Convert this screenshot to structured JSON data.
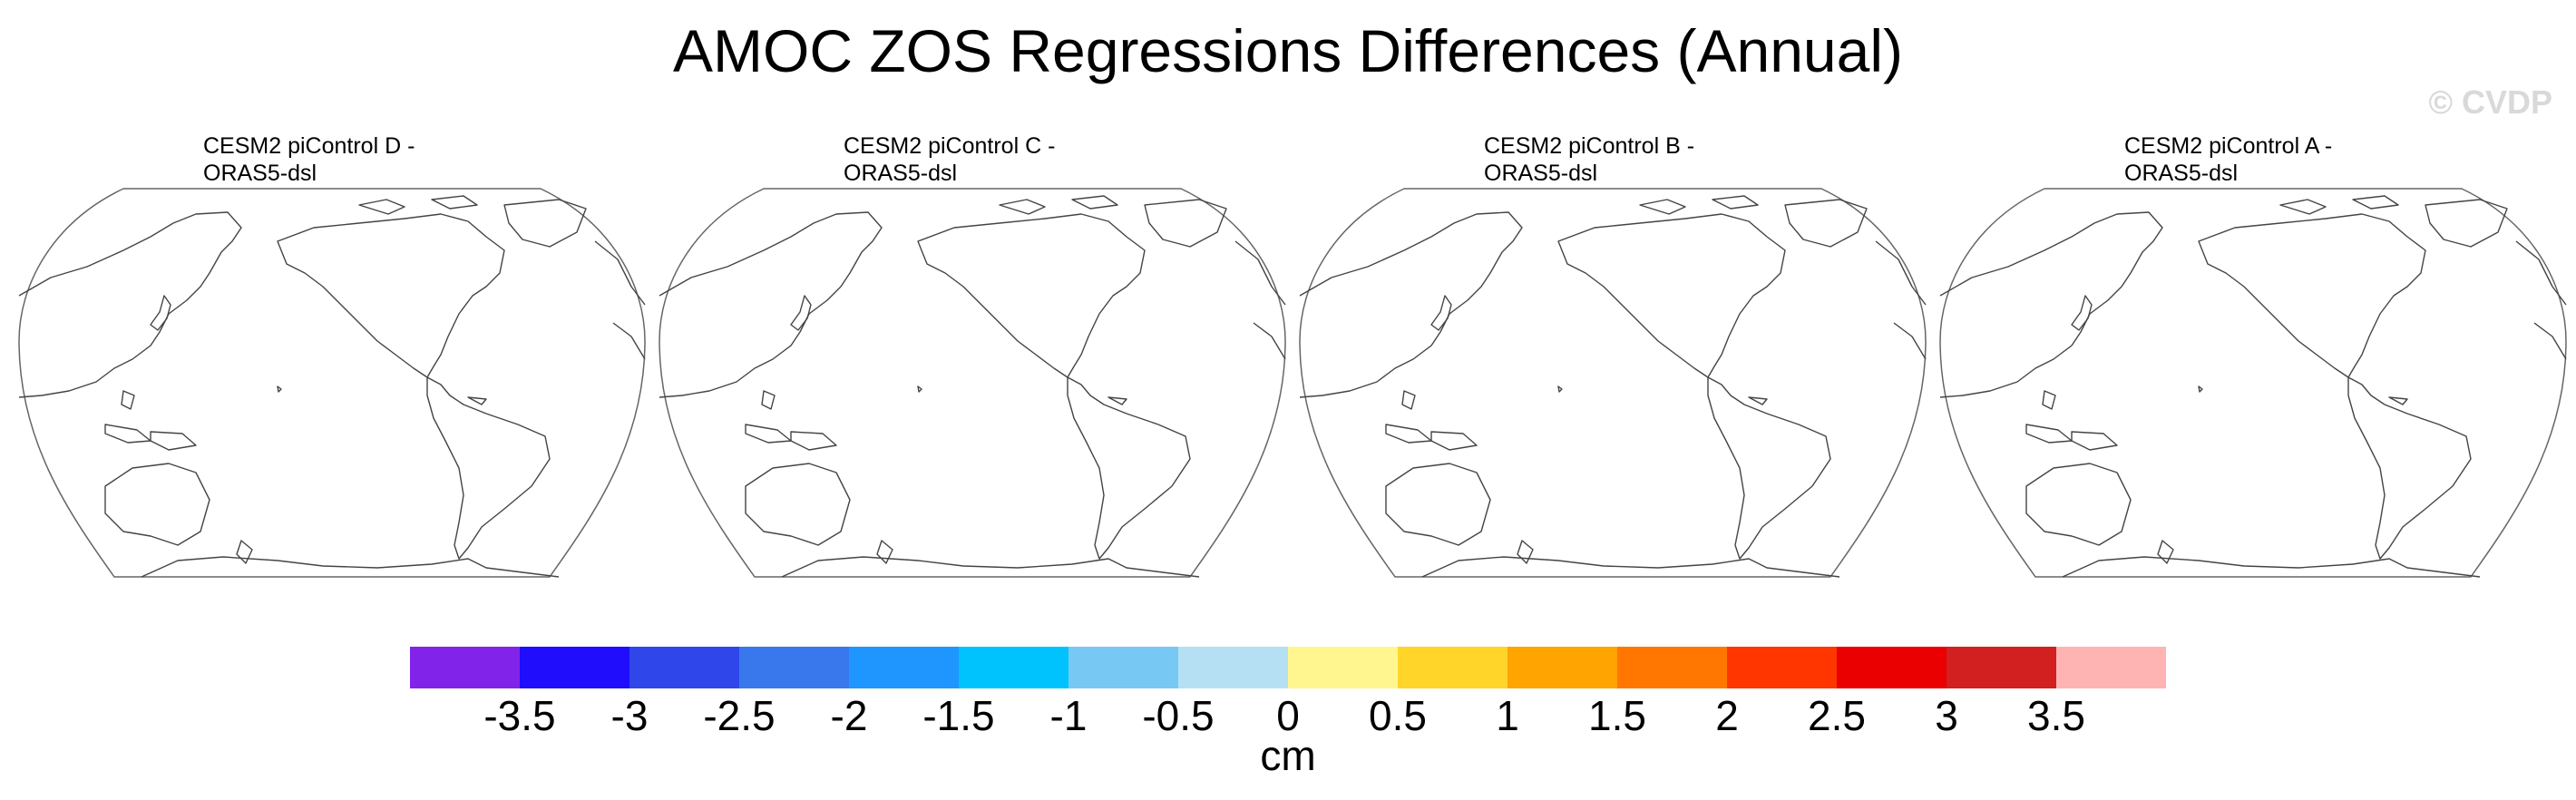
{
  "title": "AMOC ZOS Regressions Differences (Annual)",
  "watermark": "© CVDP",
  "panels": [
    {
      "line1": "CESM2 piControl D -",
      "line2": "ORAS5-dsl"
    },
    {
      "line1": "CESM2 piControl C -",
      "line2": "ORAS5-dsl"
    },
    {
      "line1": "CESM2 piControl B -",
      "line2": "ORAS5-dsl"
    },
    {
      "line1": "CESM2 piControl A -",
      "line2": "ORAS5-dsl"
    }
  ],
  "colorbar": {
    "colors": [
      "#8223ea",
      "#1f0dfc",
      "#2f46ea",
      "#3878ec",
      "#1f96fd",
      "#00c3fd",
      "#78c8f4",
      "#b5e0f4",
      "#fff68f",
      "#ffd52a",
      "#ffa400",
      "#ff7700",
      "#ff3600",
      "#ea0000",
      "#d21f1f",
      "#ffb4b4"
    ],
    "ticks": [
      "-3.5",
      "-3",
      "-2.5",
      "-2",
      "-1.5",
      "-1",
      "-0.5",
      "0",
      "0.5",
      "1",
      "1.5",
      "2",
      "2.5",
      "3",
      "3.5"
    ],
    "units": "cm"
  },
  "colors": {
    "coastline": "#444444",
    "map_border": "#666666"
  }
}
